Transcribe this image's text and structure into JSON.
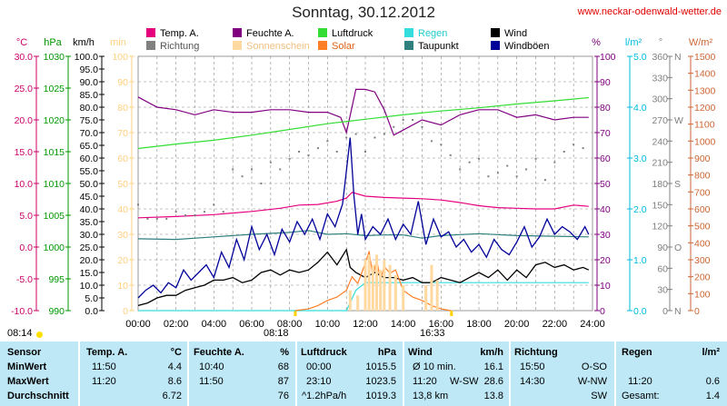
{
  "header": {
    "title": "Sonntag, 30.12.2012",
    "site": "www.neckar-odenwald-wetter.de"
  },
  "legend": [
    {
      "label": "Temp. A.",
      "color": "#e6007e"
    },
    {
      "label": "Richtung",
      "color": "#808080"
    },
    {
      "label": "Feuchte A.",
      "color": "#800080"
    },
    {
      "label": "Sonnenschein",
      "color": "#ffd9a0"
    },
    {
      "label": "Luftdruck",
      "color": "#33dd33"
    },
    {
      "label": "Solar",
      "color": "#ff7f27"
    },
    {
      "label": "Regen",
      "color": "#33dddd"
    },
    {
      "label": "Taupunkt",
      "color": "#2f7f7f"
    },
    {
      "label": "Wind",
      "color": "#000000"
    },
    {
      "label": "Windböen",
      "color": "#000099"
    }
  ],
  "axes": {
    "temp": {
      "unit": "°C",
      "color": "#cc0066",
      "ticks": [
        "30.0",
        "25.0",
        "20.0",
        "15.0",
        "10.0",
        "5.0",
        "0.0",
        "-5.0",
        "-10.0"
      ]
    },
    "pressure": {
      "unit": "hPa",
      "color": "#009900",
      "ticks": [
        "1030",
        "1025",
        "1020",
        "1015",
        "1010",
        "1005",
        "1000",
        "995",
        "990"
      ]
    },
    "wind": {
      "unit": "km/h",
      "color": "#000000",
      "ticks": [
        "100.0",
        "95.0",
        "90.0",
        "85.0",
        "80.0",
        "75.0",
        "70.0",
        "65.0",
        "60.0",
        "55.0",
        "50.0",
        "45.0",
        "40.0",
        "35.0",
        "30.0",
        "25.0",
        "20.0",
        "15.0",
        "10.0",
        "5.0",
        "0.0"
      ]
    },
    "sunshine": {
      "unit": "min",
      "color": "#ffd080",
      "ticks": [
        "100",
        "90",
        "80",
        "70",
        "60",
        "50",
        "40",
        "30",
        "20",
        "10",
        "0"
      ]
    },
    "humidity": {
      "unit": "%",
      "color": "#800080",
      "ticks": [
        "100",
        "90",
        "80",
        "70",
        "60",
        "50",
        "40",
        "30",
        "20",
        "10",
        "0"
      ]
    },
    "rain": {
      "unit": "l/m²",
      "color": "#00bbdd",
      "ticks": [
        "5.0",
        "4.0",
        "3.0",
        "2.0",
        "1.0",
        "0.0"
      ]
    },
    "direction": {
      "unit": "°",
      "color": "#808080",
      "ticks": [
        "360",
        "330",
        "300",
        "270",
        "240",
        "210",
        "180",
        "150",
        "120",
        "90",
        "60",
        "30",
        "0"
      ],
      "letters": [
        "N",
        "",
        "",
        "W",
        "",
        "",
        "S",
        "",
        "",
        "O",
        "",
        "",
        "N"
      ]
    },
    "solar": {
      "unit": "W/m²",
      "color": "#cc6633",
      "ticks": [
        "1500",
        "1400",
        "1300",
        "1200",
        "1100",
        "1000",
        "900",
        "800",
        "700",
        "600",
        "500",
        "400",
        "300",
        "200",
        "100",
        "0"
      ]
    }
  },
  "xaxis": {
    "ticks": [
      "00:00",
      "02:00",
      "04:00",
      "06:00",
      "08:00",
      "10:00",
      "12:00",
      "14:00",
      "16:00",
      "18:00",
      "20:00",
      "22:00",
      "24:00"
    ]
  },
  "sun": {
    "sunrise": "08:18",
    "sunset": "16:33",
    "marker": "08:14"
  },
  "chart_data": {
    "type": "line",
    "x_unit": "hour",
    "xlim": [
      0,
      24
    ],
    "series": [
      {
        "name": "Temp. A.",
        "axis": "temp",
        "x": [
          0,
          2,
          4,
          6,
          7.5,
          8.5,
          9.5,
          10.5,
          11,
          11.3,
          12,
          13,
          14,
          15,
          16,
          17,
          18,
          19,
          20,
          21,
          22,
          23,
          23.8
        ],
        "values": [
          4.6,
          4.8,
          5.1,
          5.6,
          6.1,
          6.6,
          6.7,
          7.2,
          7.7,
          8.6,
          8.0,
          7.8,
          7.7,
          7.6,
          7.4,
          7.0,
          6.5,
          6.2,
          6.1,
          6.0,
          6.0,
          6.6,
          6.4
        ]
      },
      {
        "name": "Feuchte A.",
        "axis": "humidity",
        "x": [
          0,
          1,
          2,
          3,
          4,
          5,
          6,
          7,
          8,
          9,
          10,
          10.7,
          11,
          11.5,
          12,
          12.5,
          13,
          13.5,
          14,
          15,
          16,
          17,
          18,
          19,
          20,
          21,
          22,
          23,
          23.8
        ],
        "values": [
          84,
          80,
          79,
          77,
          79,
          78,
          78,
          79,
          79,
          78,
          78,
          76,
          70,
          87,
          87,
          86,
          79,
          69,
          71,
          75,
          73,
          77,
          79,
          79,
          76,
          77,
          75,
          76,
          76
        ]
      },
      {
        "name": "Luftdruck",
        "axis": "pressure",
        "x": [
          0,
          2,
          4,
          6,
          8,
          10,
          12,
          14,
          16,
          18,
          20,
          22,
          23.8
        ],
        "values": [
          1015.5,
          1016.2,
          1016.8,
          1017.6,
          1018.5,
          1019.4,
          1020.1,
          1020.8,
          1021.4,
          1021.9,
          1022.5,
          1023.0,
          1023.5
        ]
      },
      {
        "name": "Taupunkt",
        "axis": "temp",
        "x": [
          0,
          2,
          4,
          6,
          8,
          9,
          10,
          11,
          12,
          13,
          14,
          15,
          16,
          18,
          20,
          22,
          23.8
        ],
        "values": [
          1.3,
          1.2,
          1.6,
          2.0,
          2.3,
          2.6,
          2.0,
          2.1,
          1.8,
          1.9,
          1.9,
          1.4,
          1.8,
          2.1,
          1.8,
          1.7,
          1.6
        ]
      },
      {
        "name": "Regen",
        "axis": "rain",
        "x": [
          0,
          11.0,
          11.5,
          12.0,
          12.5,
          14,
          16,
          18,
          20,
          22,
          23.8
        ],
        "values": [
          0,
          0,
          0.4,
          0.55,
          0.55,
          0.55,
          0.55,
          0.55,
          0.55,
          0.55,
          0.55
        ]
      },
      {
        "name": "Wind",
        "axis": "wind",
        "x": [
          0,
          0.5,
          1,
          1.5,
          2,
          2.5,
          3,
          3.5,
          4,
          4.5,
          5,
          5.5,
          6,
          6.5,
          7,
          7.5,
          8,
          8.5,
          9,
          9.5,
          10,
          10.5,
          11,
          11.2,
          11.5,
          12,
          12.5,
          13,
          13.5,
          14,
          14.5,
          15,
          15.5,
          16,
          16.5,
          17,
          17.5,
          18,
          18.5,
          19,
          19.5,
          20,
          20.5,
          21,
          21.5,
          22,
          22.5,
          23,
          23.5,
          23.8
        ],
        "values": [
          2,
          3,
          5,
          6,
          6,
          8,
          9,
          10,
          12,
          12,
          13,
          11,
          12,
          15,
          16,
          14,
          16,
          15,
          16,
          19,
          23,
          18,
          24,
          17,
          15,
          13,
          15,
          13,
          13,
          12,
          13,
          11,
          11,
          13,
          12,
          11,
          13,
          15,
          13,
          16,
          12,
          16,
          13,
          18,
          19,
          17,
          18,
          16,
          17,
          16
        ]
      },
      {
        "name": "Windböen",
        "axis": "wind",
        "x": [
          0,
          0.4,
          0.8,
          1.2,
          1.6,
          2,
          2.4,
          2.8,
          3.2,
          3.6,
          4,
          4.4,
          4.8,
          5.2,
          5.6,
          6,
          6.4,
          6.8,
          7.2,
          7.6,
          8,
          8.4,
          8.8,
          9.2,
          9.6,
          10,
          10.4,
          10.8,
          11,
          11.2,
          11.4,
          11.6,
          11.8,
          12,
          12.4,
          12.8,
          13.2,
          13.6,
          14,
          14.4,
          14.8,
          15.2,
          15.6,
          16,
          16.4,
          16.8,
          17.2,
          17.6,
          18,
          18.4,
          18.8,
          19.2,
          19.6,
          20,
          20.4,
          20.8,
          21.2,
          21.6,
          22,
          22.4,
          22.8,
          23.2,
          23.6,
          23.8
        ],
        "values": [
          5,
          8,
          10,
          7,
          11,
          9,
          16,
          12,
          15,
          18,
          13,
          23,
          17,
          28,
          20,
          33,
          24,
          30,
          22,
          32,
          27,
          35,
          30,
          36,
          28,
          38,
          33,
          42,
          55,
          68,
          45,
          30,
          38,
          28,
          33,
          30,
          36,
          28,
          34,
          30,
          43,
          26,
          36,
          29,
          31,
          25,
          28,
          23,
          26,
          21,
          28,
          24,
          22,
          27,
          33,
          25,
          29,
          36,
          30,
          33,
          31,
          28,
          33,
          30
        ]
      },
      {
        "name": "Solar",
        "axis": "solar",
        "x": [
          8.3,
          9,
          9.5,
          10,
          10.5,
          11,
          11.3,
          11.6,
          12,
          12.2,
          12.4,
          12.6,
          12.8,
          13,
          13.3,
          13.6,
          14,
          14.5,
          15,
          15.5,
          16,
          16.5
        ],
        "values": [
          0,
          10,
          30,
          60,
          80,
          120,
          200,
          160,
          280,
          350,
          200,
          300,
          180,
          260,
          220,
          240,
          120,
          80,
          60,
          30,
          10,
          0
        ]
      },
      {
        "name": "Sonnenschein",
        "axis": "sunshine",
        "bars": true,
        "x": [
          11.2,
          11.6,
          12.0,
          12.2,
          12.4,
          12.6,
          12.8,
          13.0,
          13.3,
          13.6,
          14.0,
          15.2,
          15.5,
          15.8
        ],
        "values": [
          8,
          6,
          20,
          22,
          18,
          22,
          16,
          20,
          18,
          14,
          10,
          10,
          18,
          12
        ]
      },
      {
        "name": "Richtung",
        "axis": "direction",
        "scatter": true,
        "x": [
          0,
          0.5,
          1,
          1.5,
          2,
          2.5,
          3,
          3.5,
          4,
          4.5,
          5,
          5.5,
          6,
          6.5,
          7,
          7.5,
          8,
          8.5,
          9,
          9.5,
          10,
          10.5,
          11,
          11.5,
          12,
          12.5,
          13,
          13.5,
          14,
          14.5,
          15,
          15.5,
          16,
          16.5,
          17,
          17.5,
          18,
          18.5,
          19,
          19.5,
          20,
          20.5,
          21,
          21.5,
          22,
          22.5,
          23,
          23.5
        ],
        "values": [
          150,
          130,
          130,
          130,
          140,
          135,
          135,
          140,
          150,
          140,
          200,
          190,
          200,
          180,
          210,
          200,
          215,
          225,
          220,
          230,
          240,
          225,
          245,
          250,
          225,
          245,
          250,
          260,
          270,
          270,
          260,
          240,
          235,
          220,
          200,
          210,
          215,
          190,
          195,
          205,
          190,
          200,
          215,
          185,
          210,
          225,
          235,
          230
        ]
      }
    ]
  },
  "table": {
    "columns": [
      {
        "label": "Sensor",
        "unit": ""
      },
      {
        "label": "Temp. A.",
        "unit": "°C"
      },
      {
        "label": "Feuchte A.",
        "unit": "%"
      },
      {
        "label": "Luftdruck",
        "unit": "hPa"
      },
      {
        "label": "Wind",
        "unit": "km/h"
      },
      {
        "label": "Richtung",
        "unit": ""
      },
      {
        "label": "Regen",
        "unit": "l/m²"
      }
    ],
    "rows": [
      {
        "label": "MinWert",
        "temp_time": "11:50",
        "temp": "4.4",
        "hum_time": "10:40",
        "hum": "68",
        "press_time": "00:00",
        "press": "1015.5",
        "wind_time": "Ø 10 min.",
        "wind": "16.1",
        "dir_time": "15:50",
        "dir": "O-SO",
        "rain_time": "",
        "rain": ""
      },
      {
        "label": "MaxWert",
        "temp_time": "11:20",
        "temp": "8.6",
        "hum_time": "11:50",
        "hum": "87",
        "press_time": "23:10",
        "press": "1023.5",
        "wind_time": "11:20",
        "wind_extra": "W-SW",
        "wind": "28.6",
        "dir_time": "14:30",
        "dir": "W-NW",
        "rain_time": "11:20",
        "rain": "0.6"
      },
      {
        "label": "Durchschnitt",
        "temp_time": "",
        "temp": "6.72",
        "hum_time": "",
        "hum": "76",
        "press_time": "^1.2hPa/h",
        "press": "1019.3",
        "wind_time": "13,8 km",
        "wind": "13.8",
        "dir_time": "",
        "dir": "SW",
        "rain_time": "Gesamt:",
        "rain": "1.4"
      }
    ]
  }
}
